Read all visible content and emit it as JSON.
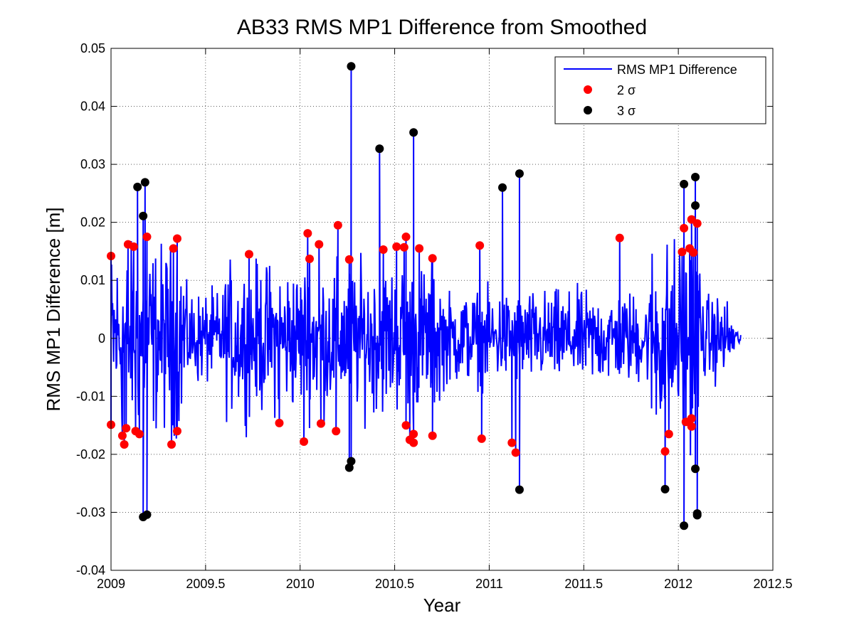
{
  "chart_data": {
    "type": "line",
    "title": "AB33 RMS MP1 Difference from Smoothed",
    "xlabel": "Year",
    "ylabel": "RMS MP1 Difference [m]",
    "xlim": [
      2009,
      2012.5
    ],
    "ylim": [
      -0.04,
      0.05
    ],
    "xticks": [
      2009,
      2009.5,
      2010,
      2010.5,
      2011,
      2011.5,
      2012,
      2012.5
    ],
    "xtick_labels": [
      "2009",
      "2009.5",
      "2010",
      "2010.5",
      "2011",
      "2011.5",
      "2012",
      "2012.5"
    ],
    "yticks": [
      -0.04,
      -0.03,
      -0.02,
      -0.01,
      0,
      0.01,
      0.02,
      0.03,
      0.04,
      0.05
    ],
    "ytick_labels": [
      "-0.04",
      "-0.03",
      "-0.02",
      "-0.01",
      "0",
      "0.01",
      "0.02",
      "0.03",
      "0.04",
      "0.05"
    ],
    "grid": true,
    "legend_position": "top-right",
    "colors": {
      "line": "#0000ff",
      "two_sigma": "#ff0000",
      "three_sigma": "#000000"
    },
    "series": [
      {
        "name": "RMS MP1 Difference",
        "style": "line",
        "x_range": [
          2009.0,
          2012.33
        ]
      },
      {
        "name": "2 σ",
        "style": "marker",
        "points": [
          [
            2009.0,
            0.0142
          ],
          [
            2009.0,
            -0.0149
          ],
          [
            2009.06,
            -0.0168
          ],
          [
            2009.07,
            -0.0183
          ],
          [
            2009.08,
            -0.0155
          ],
          [
            2009.09,
            0.0162
          ],
          [
            2009.12,
            0.0158
          ],
          [
            2009.13,
            -0.016
          ],
          [
            2009.15,
            -0.0165
          ],
          [
            2009.19,
            0.0175
          ],
          [
            2009.32,
            -0.0183
          ],
          [
            2009.33,
            0.0155
          ],
          [
            2009.35,
            0.0172
          ],
          [
            2009.35,
            -0.016
          ],
          [
            2009.73,
            0.0145
          ],
          [
            2009.89,
            -0.0146
          ],
          [
            2010.02,
            -0.0178
          ],
          [
            2010.04,
            0.0181
          ],
          [
            2010.05,
            0.0137
          ],
          [
            2010.1,
            0.0162
          ],
          [
            2010.11,
            -0.0147
          ],
          [
            2010.19,
            -0.016
          ],
          [
            2010.2,
            0.0195
          ],
          [
            2010.26,
            0.0136
          ],
          [
            2010.44,
            0.0153
          ],
          [
            2010.51,
            0.0158
          ],
          [
            2010.55,
            0.0157
          ],
          [
            2010.56,
            0.0175
          ],
          [
            2010.56,
            -0.015
          ],
          [
            2010.58,
            -0.0175
          ],
          [
            2010.6,
            -0.0165
          ],
          [
            2010.6,
            -0.018
          ],
          [
            2010.63,
            0.0155
          ],
          [
            2010.7,
            0.0138
          ],
          [
            2010.7,
            -0.0168
          ],
          [
            2010.95,
            0.016
          ],
          [
            2010.96,
            -0.0173
          ],
          [
            2011.12,
            -0.018
          ],
          [
            2011.14,
            -0.0197
          ],
          [
            2011.69,
            0.0173
          ],
          [
            2011.93,
            -0.0195
          ],
          [
            2011.95,
            -0.0165
          ],
          [
            2012.02,
            0.0149
          ],
          [
            2012.03,
            0.019
          ],
          [
            2012.04,
            -0.0144
          ],
          [
            2012.06,
            0.0155
          ],
          [
            2012.07,
            -0.0138
          ],
          [
            2012.07,
            -0.0152
          ],
          [
            2012.07,
            0.0205
          ],
          [
            2012.08,
            0.0148
          ],
          [
            2012.1,
            0.0198
          ]
        ]
      },
      {
        "name": "3 σ",
        "style": "marker",
        "points": [
          [
            2009.14,
            0.0261
          ],
          [
            2009.17,
            0.0211
          ],
          [
            2009.17,
            -0.0308
          ],
          [
            2009.18,
            0.0269
          ],
          [
            2009.19,
            -0.0304
          ],
          [
            2010.27,
            0.0469
          ],
          [
            2010.26,
            -0.0223
          ],
          [
            2010.27,
            -0.0212
          ],
          [
            2010.42,
            0.0327
          ],
          [
            2010.6,
            0.0355
          ],
          [
            2011.07,
            0.026
          ],
          [
            2011.16,
            0.0284
          ],
          [
            2011.16,
            -0.0261
          ],
          [
            2011.93,
            -0.026
          ],
          [
            2012.03,
            0.0266
          ],
          [
            2012.03,
            -0.0323
          ],
          [
            2012.09,
            0.0278
          ],
          [
            2012.09,
            0.0229
          ],
          [
            2012.09,
            -0.0225
          ],
          [
            2012.1,
            -0.0302
          ],
          [
            2012.1,
            -0.0305
          ]
        ]
      }
    ]
  }
}
